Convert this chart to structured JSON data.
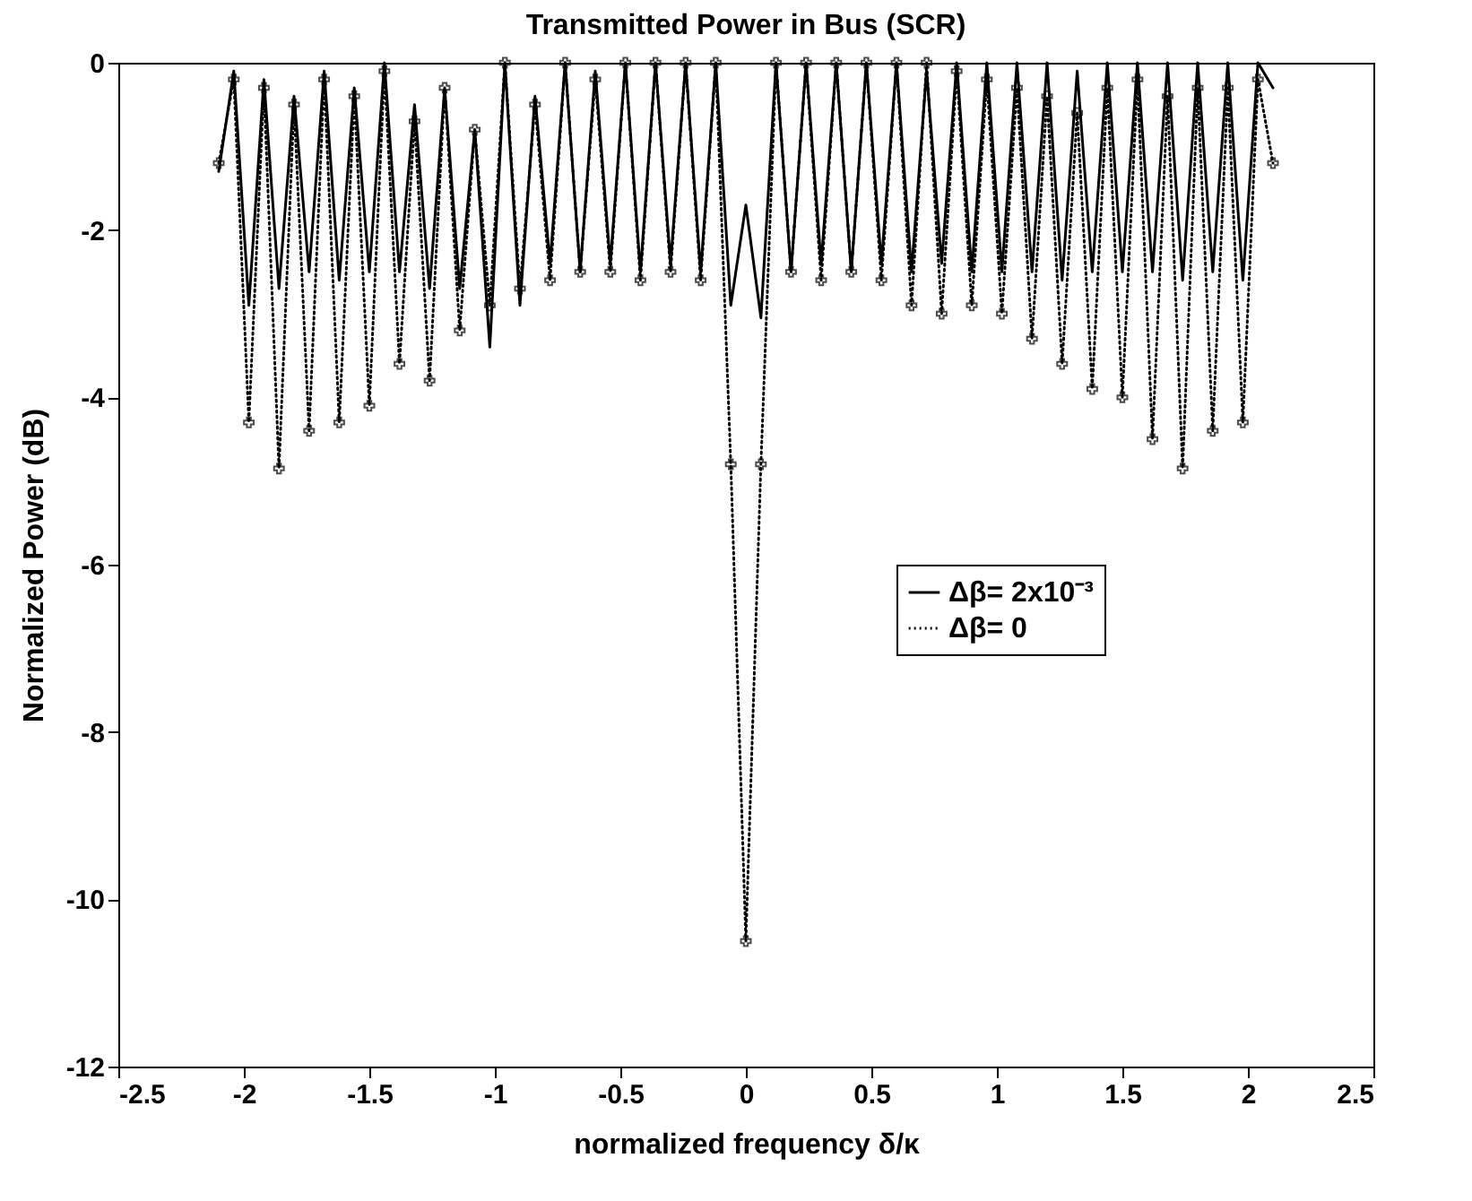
{
  "chart_data": {
    "type": "line",
    "title": "Transmitted Power in Bus (SCR)",
    "xlabel": "normalized frequency δ/κ",
    "ylabel": "Normalized Power (dB)",
    "x": [
      -2.1,
      -2.04,
      -1.98,
      -1.92,
      -1.86,
      -1.8,
      -1.74,
      -1.68,
      -1.62,
      -1.56,
      -1.5,
      -1.44,
      -1.38,
      -1.32,
      -1.26,
      -1.2,
      -1.14,
      -1.08,
      -1.02,
      -0.96,
      -0.9,
      -0.84,
      -0.78,
      -0.72,
      -0.66,
      -0.6,
      -0.54,
      -0.48,
      -0.42,
      -0.36,
      -0.3,
      -0.24,
      -0.18,
      -0.12,
      -0.06,
      0,
      0.06,
      0.12,
      0.18,
      0.24,
      0.3,
      0.36,
      0.42,
      0.48,
      0.54,
      0.6,
      0.66,
      0.72,
      0.78,
      0.84,
      0.9,
      0.96,
      1.02,
      1.08,
      1.14,
      1.2,
      1.26,
      1.32,
      1.38,
      1.44,
      1.5,
      1.56,
      1.62,
      1.68,
      1.74,
      1.8,
      1.86,
      1.92,
      1.98,
      2.04,
      2.1
    ],
    "series": [
      {
        "name": "Δβ= 2x10⁻³",
        "color": "#000000",
        "line_style": "solid",
        "marker": "none",
        "values": [
          -1.3,
          -0.1,
          -2.9,
          -0.2,
          -2.7,
          -0.4,
          -2.5,
          -0.1,
          -2.6,
          -0.3,
          -2.5,
          0,
          -2.5,
          -0.5,
          -2.7,
          -0.3,
          -2.7,
          -0.8,
          -3.4,
          0,
          -2.9,
          -0.4,
          -2.4,
          0,
          -2.5,
          -0.1,
          -2.4,
          0,
          -2.5,
          0,
          -2.4,
          0,
          -2.5,
          0,
          -2.9,
          -1.7,
          -3.05,
          0,
          -2.5,
          0,
          -2.4,
          0,
          -2.5,
          0,
          -2.4,
          0,
          -2.5,
          -0.1,
          -2.4,
          0,
          -2.5,
          0,
          -2.5,
          0,
          -2.5,
          0,
          -2.6,
          -0.1,
          -2.5,
          0,
          -2.5,
          0,
          -2.5,
          0,
          -2.6,
          0,
          -2.5,
          0,
          -2.6,
          0,
          -0.3
        ]
      },
      {
        "name": "Δβ= 0",
        "color": "#000000",
        "line_style": "dotted",
        "marker": "cross",
        "values": [
          -1.2,
          -0.2,
          -4.3,
          -0.3,
          -4.85,
          -0.5,
          -4.4,
          -0.2,
          -4.3,
          -0.4,
          -4.1,
          -0.1,
          -3.6,
          -0.7,
          -3.8,
          -0.3,
          -3.2,
          -0.8,
          -2.9,
          0,
          -2.7,
          -0.5,
          -2.6,
          0,
          -2.5,
          -0.2,
          -2.5,
          0,
          -2.6,
          0,
          -2.5,
          0,
          -2.6,
          0,
          -4.8,
          -10.5,
          -4.8,
          0,
          -2.5,
          0,
          -2.6,
          0,
          -2.5,
          0,
          -2.6,
          0,
          -2.9,
          0,
          -3.0,
          -0.1,
          -2.9,
          -0.2,
          -3.0,
          -0.3,
          -3.3,
          -0.4,
          -3.6,
          -0.6,
          -3.9,
          -0.3,
          -4.0,
          -0.2,
          -4.5,
          -0.4,
          -4.85,
          -0.3,
          -4.4,
          -0.3,
          -4.3,
          -0.2,
          -1.2
        ]
      }
    ],
    "xlim": [
      -2.5,
      2.5
    ],
    "xticks": [
      -2.5,
      -2,
      -1.5,
      -1,
      -0.5,
      0,
      0.5,
      1,
      1.5,
      2,
      2.5
    ],
    "ylim": [
      -12,
      0
    ],
    "yticks": [
      -12,
      -10,
      -8,
      -6,
      -4,
      -2,
      0
    ],
    "grid": false,
    "legend": "right"
  }
}
